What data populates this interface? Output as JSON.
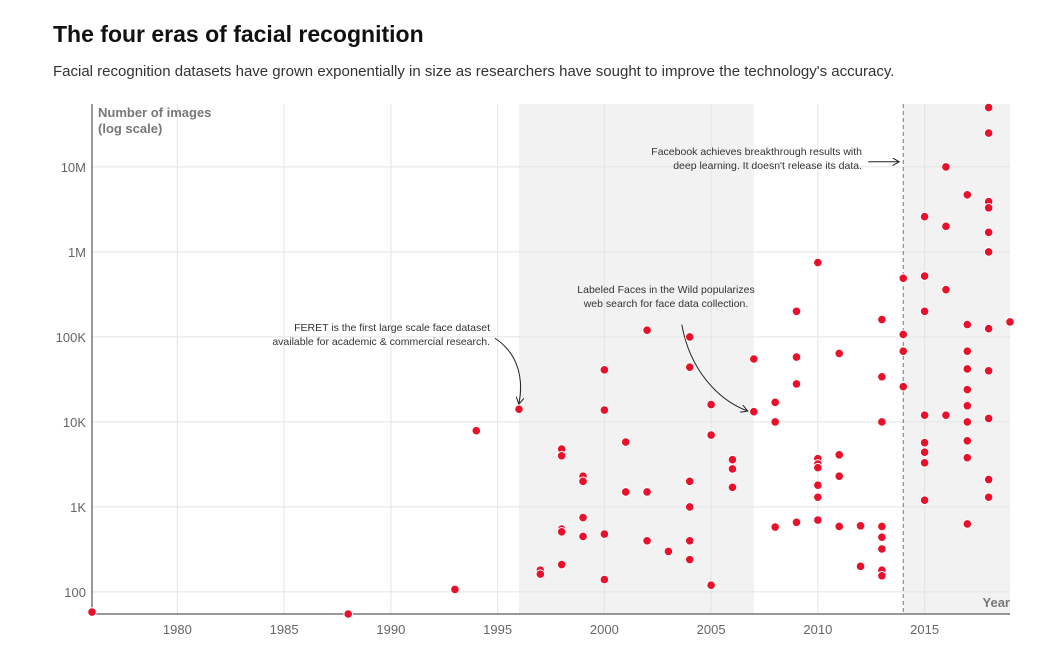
{
  "title": "The four eras of facial recognition",
  "subtitle": "Facial recognition datasets have grown exponentially in size as researchers have sought to improve the technology's accuracy.",
  "chart_data": {
    "type": "scatter",
    "xlabel": "Year",
    "ylabel": [
      "Number of images",
      "(log scale)"
    ],
    "xlim": [
      1976,
      2019
    ],
    "ylim": [
      55,
      55000000
    ],
    "yscale": "log",
    "x_ticks": [
      {
        "value": 1980,
        "label": "1980"
      },
      {
        "value": 1985,
        "label": "1985"
      },
      {
        "value": 1990,
        "label": "1990"
      },
      {
        "value": 1995,
        "label": "1995"
      },
      {
        "value": 2000,
        "label": "2000"
      },
      {
        "value": 2005,
        "label": "2005"
      },
      {
        "value": 2010,
        "label": "2010"
      },
      {
        "value": 2015,
        "label": "2015"
      }
    ],
    "y_ticks": [
      {
        "value": 100,
        "label": "100"
      },
      {
        "value": 1000,
        "label": "1K"
      },
      {
        "value": 10000,
        "label": "10K"
      },
      {
        "value": 100000,
        "label": "100K"
      },
      {
        "value": 1000000,
        "label": "1M"
      },
      {
        "value": 10000000,
        "label": "10M"
      }
    ],
    "grid": true,
    "point_color": "#e8102a",
    "era_shading": [
      {
        "from": 1996,
        "to": 2007
      },
      {
        "from": 2014,
        "to": 2019
      }
    ],
    "era_divider": 2014,
    "annotations": [
      {
        "lines": [
          "FERET is the first large scale face dataset",
          "available for academic & commercial research."
        ],
        "target": [
          1996,
          14100
        ]
      },
      {
        "lines": [
          "Labeled Faces in the Wild popularizes",
          "web search for face data collection."
        ],
        "target": [
          2007,
          13200
        ]
      },
      {
        "lines": [
          "Facebook achieves breakthrough results with",
          "deep learning. It doesn't release its data."
        ],
        "target": [
          2014,
          11500000
        ]
      }
    ],
    "points": [
      [
        1976,
        58
      ],
      [
        1988,
        55
      ],
      [
        1993,
        107
      ],
      [
        1994,
        7900
      ],
      [
        1996,
        14100
      ],
      [
        1997,
        180
      ],
      [
        1997,
        162
      ],
      [
        1998,
        4800
      ],
      [
        1998,
        4000
      ],
      [
        1998,
        550
      ],
      [
        1998,
        510
      ],
      [
        1998,
        210
      ],
      [
        1999,
        2300
      ],
      [
        1999,
        2000
      ],
      [
        1999,
        750
      ],
      [
        1999,
        450
      ],
      [
        2000,
        41000
      ],
      [
        2000,
        13800
      ],
      [
        2000,
        480
      ],
      [
        2000,
        140
      ],
      [
        2001,
        5800
      ],
      [
        2001,
        1500
      ],
      [
        2002,
        120000
      ],
      [
        2002,
        1500
      ],
      [
        2002,
        400
      ],
      [
        2003,
        300
      ],
      [
        2004,
        100000
      ],
      [
        2004,
        44000
      ],
      [
        2004,
        2000
      ],
      [
        2004,
        1000
      ],
      [
        2004,
        400
      ],
      [
        2004,
        240
      ],
      [
        2005,
        16000
      ],
      [
        2005,
        7000
      ],
      [
        2005,
        120
      ],
      [
        2006,
        3600
      ],
      [
        2006,
        2800
      ],
      [
        2006,
        1700
      ],
      [
        2007,
        55000
      ],
      [
        2007,
        13200
      ],
      [
        2008,
        17000
      ],
      [
        2008,
        10000
      ],
      [
        2008,
        580
      ],
      [
        2009,
        200000
      ],
      [
        2009,
        58000
      ],
      [
        2009,
        28000
      ],
      [
        2009,
        660
      ],
      [
        2010,
        750000
      ],
      [
        2010,
        3700
      ],
      [
        2010,
        3200
      ],
      [
        2010,
        2900
      ],
      [
        2010,
        1800
      ],
      [
        2010,
        1300
      ],
      [
        2010,
        700
      ],
      [
        2011,
        64000
      ],
      [
        2011,
        4100
      ],
      [
        2011,
        2300
      ],
      [
        2011,
        590
      ],
      [
        2012,
        600
      ],
      [
        2012,
        200
      ],
      [
        2013,
        160000
      ],
      [
        2013,
        34000
      ],
      [
        2013,
        10000
      ],
      [
        2013,
        590
      ],
      [
        2013,
        440
      ],
      [
        2013,
        320
      ],
      [
        2013,
        180
      ],
      [
        2013,
        155
      ],
      [
        2014,
        490000
      ],
      [
        2014,
        107000
      ],
      [
        2014,
        68000
      ],
      [
        2014,
        26000
      ],
      [
        2015,
        2600000
      ],
      [
        2015,
        520000
      ],
      [
        2015,
        200000
      ],
      [
        2015,
        12000
      ],
      [
        2015,
        5700
      ],
      [
        2015,
        4400
      ],
      [
        2015,
        3300
      ],
      [
        2015,
        1200
      ],
      [
        2016,
        10000000
      ],
      [
        2016,
        2000000
      ],
      [
        2016,
        360000
      ],
      [
        2016,
        12000
      ],
      [
        2017,
        4700000
      ],
      [
        2017,
        140000
      ],
      [
        2017,
        68000
      ],
      [
        2017,
        42000
      ],
      [
        2017,
        24000
      ],
      [
        2017,
        16000
      ],
      [
        2017,
        15500
      ],
      [
        2017,
        10000
      ],
      [
        2017,
        6000
      ],
      [
        2017,
        3800
      ],
      [
        2017,
        630
      ],
      [
        2018,
        50000000
      ],
      [
        2018,
        25000000
      ],
      [
        2018,
        3900000
      ],
      [
        2018,
        3300000
      ],
      [
        2018,
        1700000
      ],
      [
        2018,
        1000000
      ],
      [
        2018,
        125000
      ],
      [
        2018,
        40000
      ],
      [
        2018,
        11000
      ],
      [
        2018,
        2100
      ],
      [
        2018,
        1300
      ],
      [
        2019,
        150000
      ]
    ]
  }
}
